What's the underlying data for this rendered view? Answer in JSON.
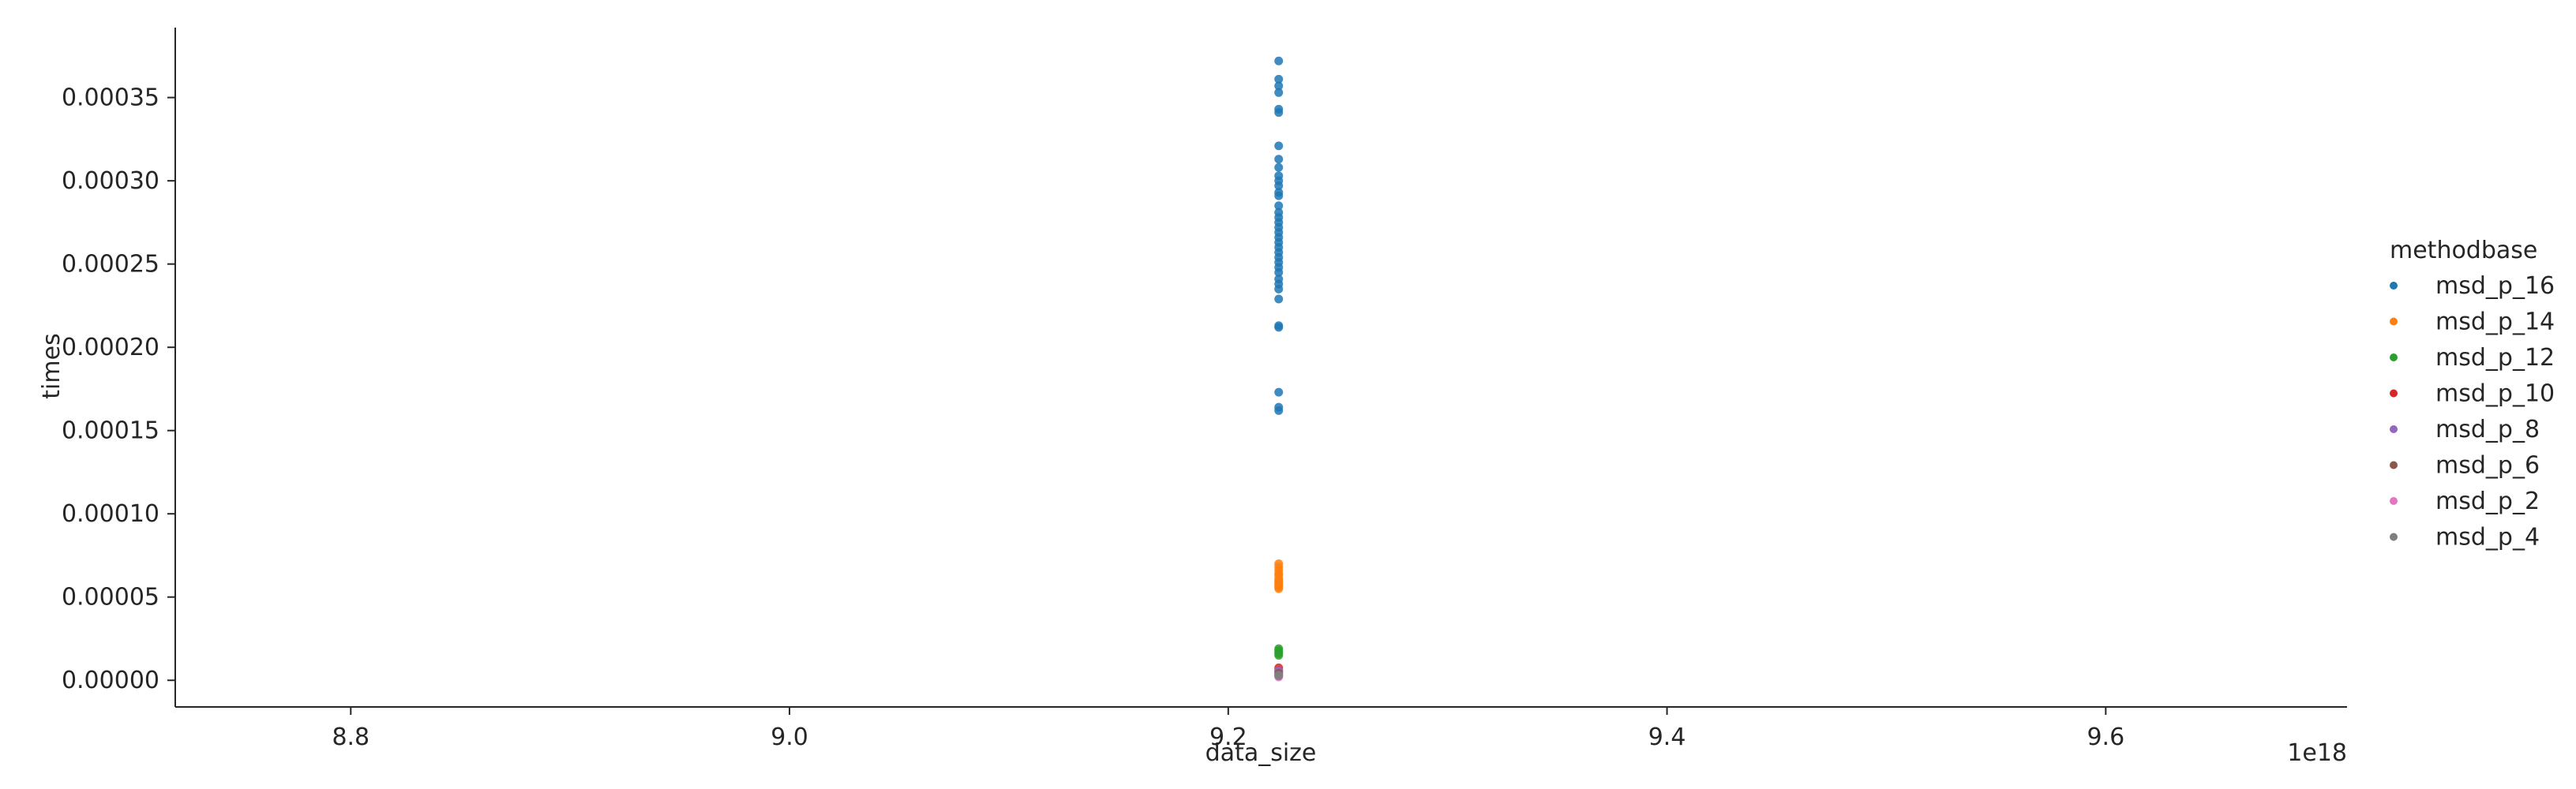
{
  "chart_data": {
    "type": "scatter",
    "xlabel": "data_size",
    "ylabel": "times",
    "x_offset_label": "1e18",
    "xlim": [
      8.72e+18,
      9.71e+18
    ],
    "ylim": [
      -1.6e-05,
      0.000392
    ],
    "x_ticks": [
      {
        "value": 8.8e+18,
        "label": "8.8"
      },
      {
        "value": 9e+18,
        "label": "9.0"
      },
      {
        "value": 9.2e+18,
        "label": "9.2"
      },
      {
        "value": 9.4e+18,
        "label": "9.4"
      },
      {
        "value": 9.6e+18,
        "label": "9.6"
      }
    ],
    "y_ticks": [
      {
        "value": 0.0,
        "label": "0.00000"
      },
      {
        "value": 5e-05,
        "label": "0.00005"
      },
      {
        "value": 0.0001,
        "label": "0.00010"
      },
      {
        "value": 0.00015,
        "label": "0.00015"
      },
      {
        "value": 0.0002,
        "label": "0.00020"
      },
      {
        "value": 0.00025,
        "label": "0.00025"
      },
      {
        "value": 0.0003,
        "label": "0.00030"
      },
      {
        "value": 0.00035,
        "label": "0.00035"
      }
    ],
    "grid": false,
    "legend": {
      "title": "methodbase",
      "placement": "right"
    },
    "series": [
      {
        "name": "msd_p_16",
        "color": "#1f77b4",
        "x": 9.223e+18,
        "y": [
          0.000372,
          0.000361,
          0.000357,
          0.000353,
          0.000343,
          0.000341,
          0.000321,
          0.000313,
          0.000308,
          0.000303,
          0.0003,
          0.000297,
          0.000293,
          0.000291,
          0.000285,
          0.000281,
          0.000278,
          0.000275,
          0.000272,
          0.000269,
          0.000266,
          0.000263,
          0.00026,
          0.000257,
          0.000254,
          0.000251,
          0.000248,
          0.000245,
          0.000241,
          0.000238,
          0.000235,
          0.000229,
          0.000213,
          0.000212,
          0.000173,
          0.000164,
          0.000162
        ]
      },
      {
        "name": "msd_p_14",
        "color": "#ff7f0e",
        "x": 9.223e+18,
        "y": [
          7e-05,
          6.8e-05,
          6.6e-05,
          6.4e-05,
          6.3e-05,
          6.1e-05,
          6e-05,
          5.9e-05,
          5.8e-05,
          5.7e-05,
          5.6e-05,
          5.5e-05
        ]
      },
      {
        "name": "msd_p_12",
        "color": "#2ca02c",
        "x": 9.223e+18,
        "y": [
          1.9e-05,
          1.8e-05,
          1.7e-05,
          1.6e-05,
          1.5e-05
        ]
      },
      {
        "name": "msd_p_10",
        "color": "#d62728",
        "x": 9.223e+18,
        "y": [
          7.5e-06,
          6e-06
        ]
      },
      {
        "name": "msd_p_8",
        "color": "#9467bd",
        "x": 9.223e+18,
        "y": [
          5.8e-06,
          5e-06
        ]
      },
      {
        "name": "msd_p_6",
        "color": "#8c564b",
        "x": 9.223e+18,
        "y": [
          4.2e-06,
          3.5e-06
        ]
      },
      {
        "name": "msd_p_2",
        "color": "#e377c2",
        "x": 9.223e+18,
        "y": [
          2.5e-06,
          2e-06
        ]
      },
      {
        "name": "msd_p_4",
        "color": "#7f7f7f",
        "x": 9.223e+18,
        "y": [
          3.2e-06,
          2.8e-06
        ]
      }
    ]
  }
}
